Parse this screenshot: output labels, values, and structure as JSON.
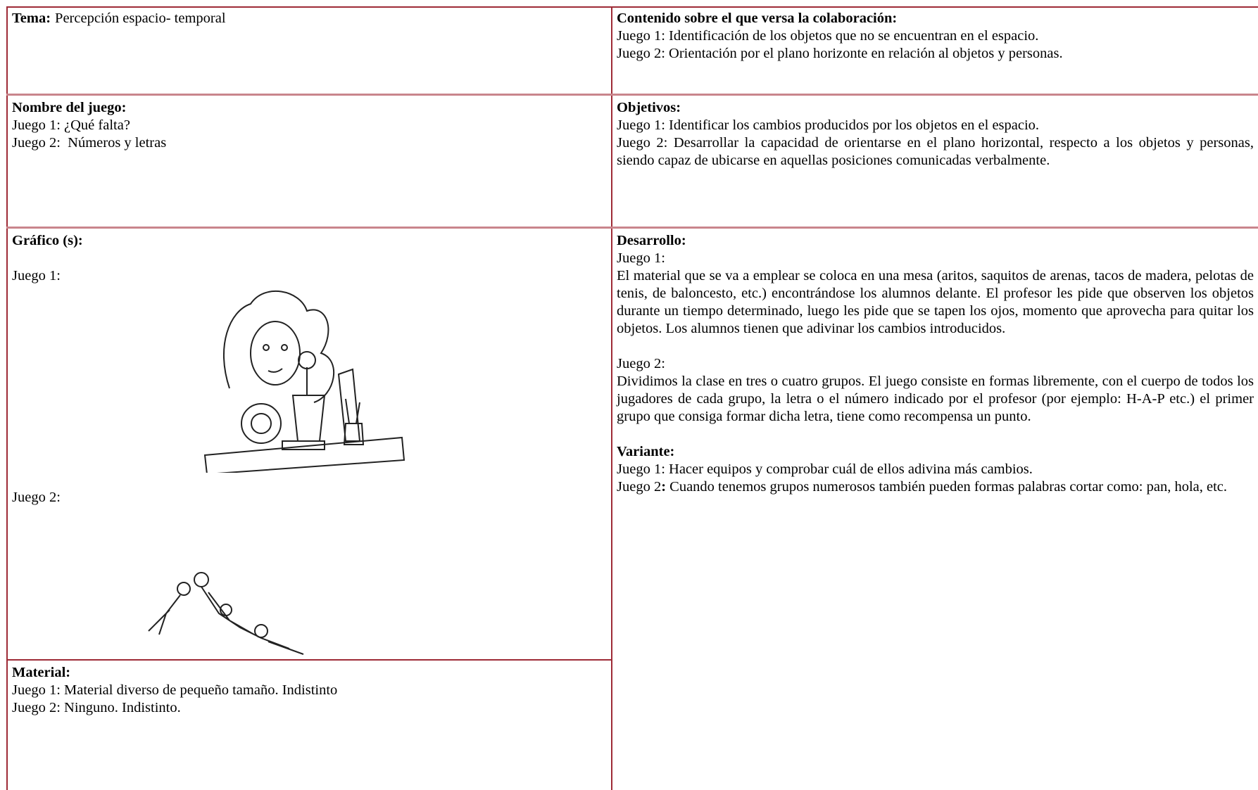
{
  "table": {
    "tema": {
      "label": "Tema:",
      "text": "Percepción espacio- temporal"
    },
    "contenido": {
      "label": "Contenido sobre el que versa la colaboración:",
      "lines": [
        "Juego 1: Identificación de los objetos que no se encuentran en el espacio.",
        "Juego 2: Orientación por el plano horizonte en relación al objetos y personas."
      ]
    },
    "nombre": {
      "label": "Nombre del juego:",
      "lines": [
        "Juego 1: ¿Qué falta?",
        "Juego 2:  Números y letras"
      ]
    },
    "objetivos": {
      "label": "Objetivos:",
      "lines": [
        "Juego 1: Identificar los cambios producidos por los objetos en el espacio.",
        "Juego 2: Desarrollar la capacidad de orientarse en el plano horizontal, respecto a los objetos y personas, siendo capaz de ubicarse en aquellas posiciones comunicadas verbalmente."
      ]
    },
    "grafico": {
      "label": "Gráfico (s):",
      "juego1": "Juego 1:",
      "juego2": "Juego 2:"
    },
    "material": {
      "label": "Material:",
      "lines": [
        "Juego 1: Material diverso de pequeño tamaño. Indistinto",
        "Juego 2: Ninguno. Indistinto."
      ]
    },
    "desarrollo": {
      "label": "Desarrollo:",
      "juego1_label": "Juego 1:",
      "juego1_text": "El material que se va a emplear se coloca en una mesa (aritos, saquitos de arenas, tacos de madera, pelotas de tenis, de baloncesto, etc.) encontrándose los alumnos delante. El profesor les pide que observen los objetos durante un tiempo determinado, luego les pide que se tapen los ojos, momento que aprovecha para quitar los objetos. Los alumnos tienen que adivinar los cambios introducidos.",
      "juego2_label": "Juego 2:",
      "juego2_text": "Dividimos la clase en tres o cuatro grupos. El juego consiste en formas libremente, con el cuerpo de todos los jugadores de cada grupo, la letra o el número indicado por el profesor (por ejemplo: H-A-P etc.) el primer grupo que consiga formar dicha letra, tiene como recompensa un punto."
    },
    "variante": {
      "label": "Variante:",
      "line1": "Juego 1: Hacer equipos y comprobar cuál de ellos adivina más cambios.",
      "line2_prefix": "Juego 2",
      "line2_colon": ":",
      "line2_text": "Cuando tenemos grupos numerosos también pueden formas palabras cortar como: pan, hola, etc."
    }
  }
}
